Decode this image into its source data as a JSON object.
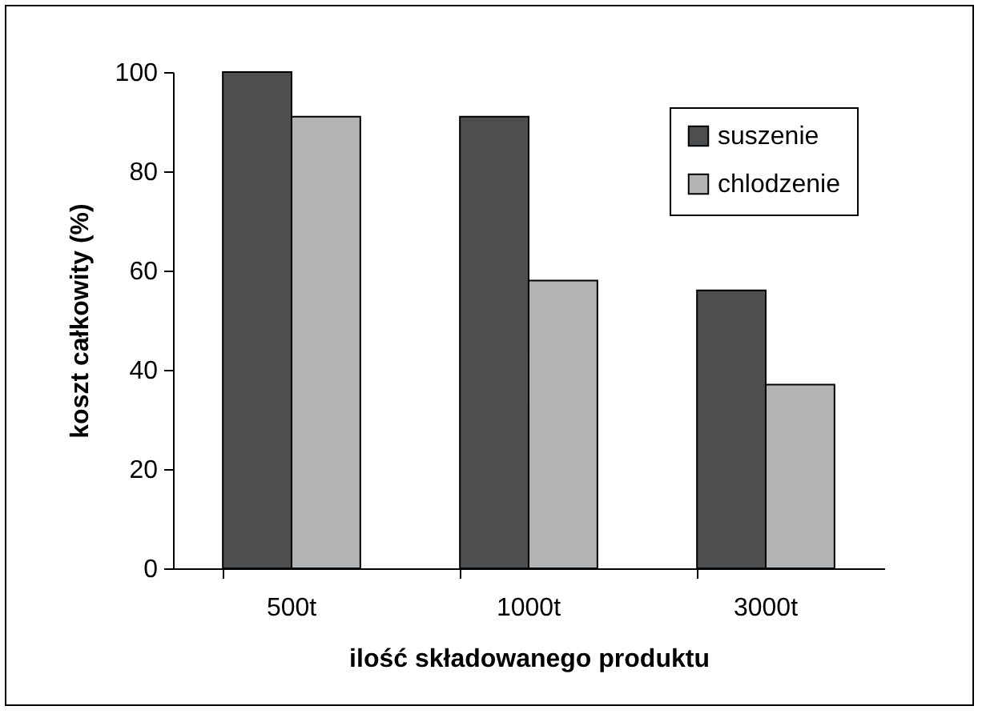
{
  "chart_data": {
    "type": "bar",
    "xlabel": "ilość składowanego produktu",
    "ylabel": "koszt całkowity (%)",
    "categories": [
      "500t",
      "1000t",
      "3000t"
    ],
    "series": [
      {
        "name": "suszenie",
        "color": "#4d4e50",
        "values": [
          100,
          91,
          56
        ]
      },
      {
        "name": "chlodzenie",
        "color": "#b2b3b5",
        "values": [
          91,
          58,
          37
        ]
      }
    ],
    "ylim": [
      0,
      100
    ],
    "yticks": [
      0,
      20,
      40,
      60,
      80,
      100
    ],
    "grid": false,
    "legend": "top right"
  }
}
